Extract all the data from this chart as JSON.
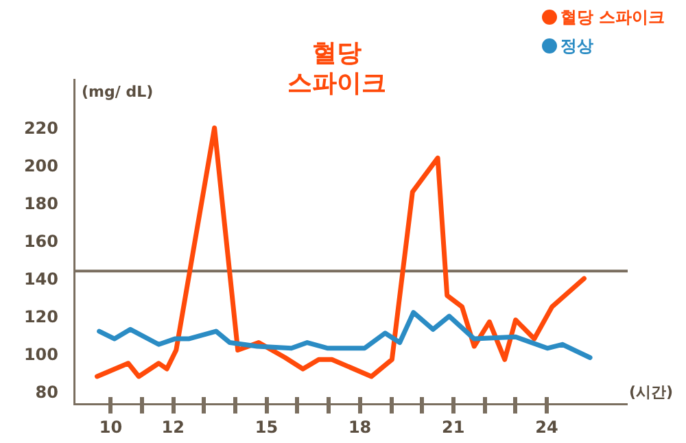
{
  "chart_data": {
    "type": "line",
    "xlabel": "(시간)",
    "ylabel": "(mg/ dL)",
    "annotations": [
      "혈당",
      "스파이크"
    ],
    "xlim": [
      8.8,
      26.6
    ],
    "ylim": [
      72.7,
      246
    ],
    "xticks": [
      10,
      {
        "value": 11,
        "label": null
      },
      12,
      {
        "value": 13,
        "label": null
      },
      {
        "value": 14,
        "label": null
      },
      15,
      {
        "value": 16,
        "label": null
      },
      {
        "value": 17,
        "label": null
      },
      18,
      {
        "value": 19,
        "label": null
      },
      {
        "value": 20,
        "label": null
      },
      21,
      {
        "value": 22,
        "label": null
      },
      {
        "value": 23,
        "label": null
      },
      24
    ],
    "yticks": [
      80,
      100,
      120,
      140,
      160,
      180,
      200,
      220
    ],
    "ref_lines": [
      {
        "axis": "y",
        "value": 144,
        "color": "#7a6e5f"
      }
    ],
    "grid": false,
    "legend": "top right",
    "marker": "none",
    "line_style": "solid",
    "series": [
      {
        "name": "혈당 스파이크",
        "color": "#ff4a0a",
        "x": [
          9.56,
          10.56,
          10.9,
          11.54,
          11.8,
          12.1,
          13.33,
          14.08,
          14.75,
          15.6,
          16.17,
          16.68,
          17.1,
          18.37,
          19.03,
          19.69,
          20.5,
          20.8,
          21.28,
          21.67,
          22.16,
          22.65,
          23.0,
          23.6,
          24.17,
          25.2
        ],
        "values": [
          88,
          95,
          88,
          95,
          92,
          102,
          220,
          102,
          106,
          98,
          92,
          97,
          97,
          88,
          97,
          186,
          204,
          131,
          125,
          104,
          117,
          97,
          118,
          108,
          125,
          140
        ]
      },
      {
        "name": "정상",
        "color": "#2b8cc4",
        "x": [
          9.63,
          10.12,
          10.63,
          11.54,
          12.06,
          12.5,
          13.38,
          13.82,
          14.7,
          15.8,
          16.31,
          16.97,
          18.15,
          18.81,
          19.28,
          19.72,
          20.35,
          20.87,
          21.67,
          23.0,
          24.02,
          24.5,
          25.39
        ],
        "values": [
          112,
          108,
          113,
          105,
          108,
          108,
          112,
          106,
          104,
          103,
          106,
          103,
          103,
          111,
          106,
          122,
          113,
          120,
          108,
          109,
          103,
          105,
          98
        ]
      }
    ]
  }
}
